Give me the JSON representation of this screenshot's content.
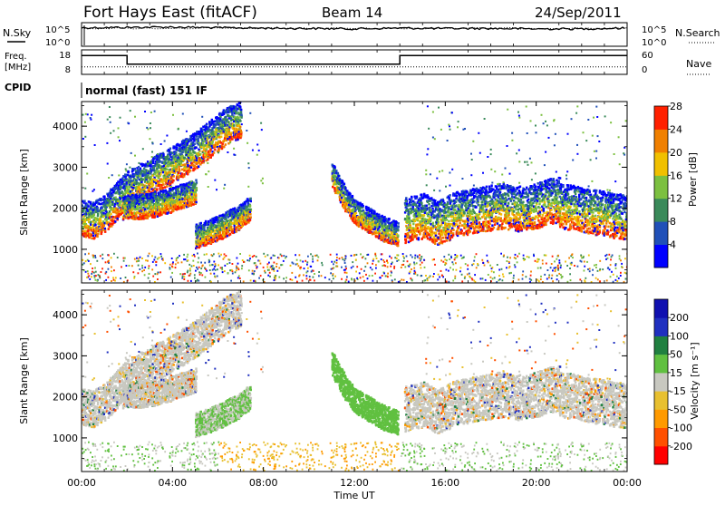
{
  "header": {
    "station": "Fort Hays East (fitACF)",
    "beam": "Beam 14",
    "date": "24/Sep/2011"
  },
  "noise_panel": {
    "left_label": "N.Sky",
    "left_ticks": [
      "10^5",
      "10^0"
    ],
    "right_ticks": [
      "10^5",
      "10^0"
    ],
    "right_label": "N.Search"
  },
  "freq_panel": {
    "left_label_1": "Freq.",
    "left_label_2": "[MHz]",
    "left_ticks": [
      "18",
      "8"
    ],
    "right_ticks": [
      "60",
      "0"
    ],
    "right_label": "Nave"
  },
  "cpid": {
    "label": "CPID",
    "mode": "normal (fast) 151 IF"
  },
  "power_panel": {
    "ylabel": "Slant Range [km]",
    "yticks": [
      "1000",
      "2000",
      "3000",
      "4000"
    ],
    "colorbar_label": "Power [dB]",
    "colorbar_ticks": [
      "4",
      "8",
      "12",
      "16",
      "20",
      "24",
      "28"
    ],
    "colors": [
      "#0000ff",
      "#2050b8",
      "#3a8a5a",
      "#7cc040",
      "#f0c000",
      "#f08000",
      "#ff2000"
    ]
  },
  "velocity_panel": {
    "ylabel": "Slant Range [km]",
    "yticks": [
      "1000",
      "2000",
      "3000",
      "4000"
    ],
    "colorbar_label": "Velocity [m s⁻¹]",
    "colorbar_ticks": [
      "-200",
      "-100",
      "-50",
      "-15",
      "15",
      "50",
      "100",
      "200"
    ],
    "colors": [
      "#ff0000",
      "#ff5000",
      "#ff9a00",
      "#e8c030",
      "#c8c8c0",
      "#60c040",
      "#208040",
      "#2030c0",
      "#1010b0"
    ]
  },
  "x_axis": {
    "ticks": [
      "00:00",
      "04:00",
      "08:00",
      "12:00",
      "16:00",
      "20:00",
      "00:00"
    ],
    "label": "Time UT"
  },
  "chart_data": [
    {
      "type": "line",
      "title": "N.Sky / N.Search",
      "x_hours": [
        0,
        2,
        4,
        6,
        8,
        10,
        12,
        14,
        16,
        18,
        20,
        22,
        24
      ],
      "series": [
        {
          "name": "N.Sky",
          "values_log10": [
            4.6,
            4.7,
            4.8,
            4.6,
            4.5,
            4.4,
            4.3,
            4.5,
            4.4,
            4.4,
            4.3,
            4.3,
            4.5
          ]
        }
      ],
      "ylim_log10": [
        0,
        5
      ]
    },
    {
      "type": "line",
      "title": "Freq. / Nave",
      "x_hours": [
        0,
        2,
        2,
        14,
        14,
        24
      ],
      "series": [
        {
          "name": "Freq.",
          "values": [
            16.5,
            16.5,
            12.2,
            12.2,
            16.5,
            16.5
          ]
        },
        {
          "name": "Nave",
          "values": [
            17,
            17,
            17,
            17,
            17,
            17
          ]
        }
      ],
      "ylim_freq": [
        8,
        18
      ],
      "ylim_nave": [
        0,
        60
      ]
    },
    {
      "type": "heatmap",
      "title": "Power [dB]",
      "xlabel": "Time UT",
      "ylabel": "Slant Range [km]",
      "xlim_hours": [
        0,
        24
      ],
      "ylim_km": [
        180,
        4600
      ],
      "ridges": [
        {
          "t": [
            0,
            0.5,
            1.0,
            1.5,
            2.0,
            3.0,
            4.0,
            5.0,
            6.0,
            6.5,
            7.0
          ],
          "r": [
            1300,
            1250,
            1400,
            1700,
            2000,
            2300,
            2600,
            2950,
            3400,
            3600,
            3700
          ]
        },
        {
          "t": [
            1.8,
            3.0,
            4.0,
            5.0
          ],
          "r": [
            1700,
            1750,
            1900,
            2100
          ]
        },
        {
          "t": [
            5.0,
            6.0,
            7.0,
            7.4
          ],
          "r": [
            1000,
            1200,
            1500,
            1700
          ]
        },
        {
          "t": [
            11.0,
            11.6,
            12.0,
            12.6,
            13.2,
            13.9
          ],
          "r": [
            2500,
            1900,
            1600,
            1400,
            1200,
            1050
          ]
        },
        {
          "t": [
            14.2,
            15.0,
            15.6,
            16.5,
            17.5,
            18.5,
            19.5,
            20.5,
            21.0
          ],
          "r": [
            1150,
            1250,
            1080,
            1300,
            1400,
            1500,
            1400,
            1600,
            1650
          ]
        },
        {
          "t": [
            21.0,
            22.0,
            23.0,
            24.0
          ],
          "r": [
            1500,
            1400,
            1300,
            1200
          ]
        }
      ],
      "cmap_ticks_db": [
        4,
        8,
        12,
        16,
        20,
        24,
        28
      ]
    },
    {
      "type": "heatmap",
      "title": "Velocity [m s⁻¹]",
      "xlabel": "Time UT",
      "ylabel": "Slant Range [km]",
      "xlim_hours": [
        0,
        24
      ],
      "ylim_km": [
        180,
        4600
      ],
      "cmap_ticks": [
        -200,
        -100,
        -50,
        -15,
        15,
        50,
        100,
        200
      ]
    }
  ]
}
